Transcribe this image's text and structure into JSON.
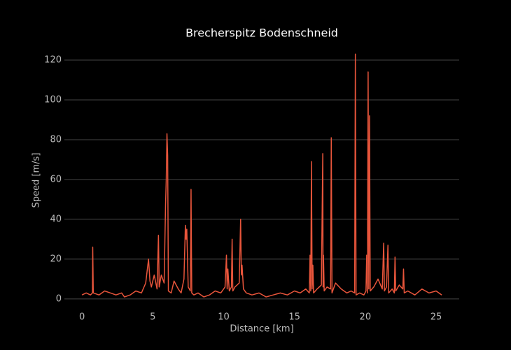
{
  "chart_data": {
    "type": "line",
    "title": "Brecherspitz Bodenschneid",
    "x_label": "Distance [km]",
    "y_label": "Speed [m/s]",
    "x": [
      0,
      0.3,
      0.6,
      0.74,
      0.76,
      0.8,
      1.2,
      1.6,
      2.0,
      2.4,
      2.8,
      3.0,
      3.4,
      3.8,
      4.2,
      4.5,
      4.6,
      4.7,
      4.8,
      4.9,
      5.1,
      5.3,
      5.4,
      5.45,
      5.6,
      5.8,
      5.9,
      5.95,
      6.0,
      6.05,
      6.1,
      6.3,
      6.5,
      6.8,
      7.0,
      7.2,
      7.3,
      7.35,
      7.4,
      7.5,
      7.65,
      7.7,
      7.75,
      7.9,
      8.2,
      8.6,
      9.0,
      9.4,
      9.8,
      10.1,
      10.2,
      10.25,
      10.3,
      10.4,
      10.55,
      10.6,
      10.65,
      10.8,
      11.1,
      11.2,
      11.25,
      11.3,
      11.4,
      11.6,
      12.0,
      12.5,
      13.0,
      13.5,
      14.0,
      14.5,
      15.0,
      15.4,
      15.8,
      16.05,
      16.1,
      16.15,
      16.2,
      16.25,
      16.3,
      16.35,
      16.6,
      16.9,
      17.0,
      17.02,
      17.05,
      17.1,
      17.3,
      17.55,
      17.6,
      17.65,
      17.9,
      18.3,
      18.7,
      19.0,
      19.25,
      19.3,
      19.35,
      19.6,
      19.9,
      20.05,
      20.1,
      20.15,
      20.2,
      20.25,
      20.3,
      20.35,
      20.6,
      20.9,
      21.2,
      21.3,
      21.35,
      21.5,
      21.6,
      21.65,
      21.9,
      22.05,
      22.1,
      22.15,
      22.4,
      22.65,
      22.7,
      22.75,
      23.0,
      23.5,
      24.0,
      24.5,
      25.0,
      25.4
    ],
    "series": [
      {
        "name": "Speed",
        "color": "#e8553b",
        "values": [
          2,
          3,
          2,
          3,
          26,
          3,
          2,
          4,
          3,
          2,
          3,
          1,
          2,
          4,
          3,
          8,
          14,
          20,
          9,
          6,
          12,
          5,
          32,
          6,
          12,
          8,
          47,
          60,
          83,
          72,
          4,
          3,
          9,
          5,
          3,
          10,
          37,
          30,
          35,
          6,
          4,
          55,
          3,
          2,
          3,
          1,
          2,
          4,
          3,
          6,
          22,
          5,
          15,
          4,
          6,
          30,
          4,
          6,
          8,
          40,
          12,
          17,
          5,
          3,
          2,
          3,
          1,
          2,
          3,
          2,
          4,
          3,
          5,
          3,
          22,
          4,
          69,
          5,
          17,
          3,
          5,
          7,
          73,
          6,
          22,
          4,
          6,
          5,
          81,
          3,
          8,
          5,
          3,
          4,
          3,
          123,
          2,
          3,
          2,
          4,
          22,
          3,
          114,
          5,
          92,
          4,
          6,
          10,
          5,
          28,
          4,
          6,
          27,
          3,
          5,
          3,
          21,
          4,
          7,
          5,
          15,
          3,
          4,
          2,
          5,
          3,
          4,
          2
        ]
      }
    ],
    "xlim": [
      -1.24,
      26.63
    ],
    "ylim": [
      -6,
      125.6
    ],
    "xticks": [
      0,
      5,
      10,
      15,
      20,
      25
    ],
    "yticks": [
      0,
      20,
      40,
      60,
      80,
      100,
      120
    ],
    "grid": true
  }
}
